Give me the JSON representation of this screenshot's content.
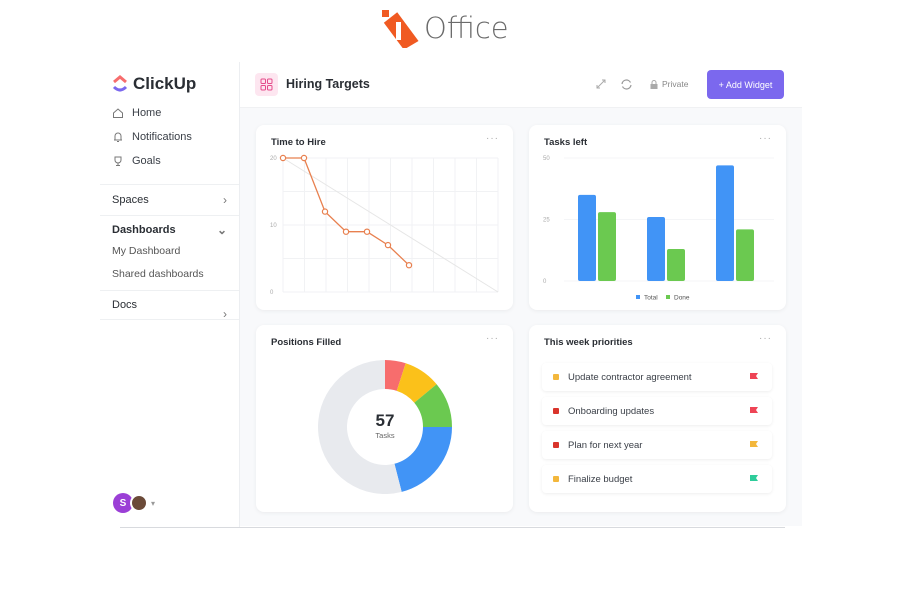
{
  "brand": {
    "name": "Office",
    "accent": "#f05a22"
  },
  "app": {
    "name": "ClickUp"
  },
  "sidebar": {
    "nav": [
      {
        "label": "Home",
        "icon": "home-icon"
      },
      {
        "label": "Notifications",
        "icon": "bell-icon"
      },
      {
        "label": "Goals",
        "icon": "trophy-icon"
      }
    ],
    "spaces": "Spaces",
    "dashboards": "Dashboards",
    "dashboard_items": [
      "My Dashboard",
      "Shared dashboards"
    ],
    "docs": "Docs",
    "avatar_initial": "S"
  },
  "header": {
    "title": "Hiring Targets",
    "privacy": "Private",
    "add_widget": "+ Add Widget",
    "accent": "#7b68ee"
  },
  "widgets": {
    "time_to_hire": {
      "title": "Time to Hire",
      "menu": "···"
    },
    "tasks_left": {
      "title": "Tasks left",
      "menu": "···"
    },
    "positions_filled": {
      "title": "Positions Filled",
      "menu": "···",
      "value": "57",
      "unit": "Tasks"
    },
    "priorities": {
      "title": "This week priorities",
      "menu": "···",
      "items": [
        {
          "label": "Update contractor agreement",
          "dot": "#f3b73c",
          "flag": "#ee4455"
        },
        {
          "label": "Onboarding updates",
          "dot": "#d9342b",
          "flag": "#ee4455"
        },
        {
          "label": "Plan for next year",
          "dot": "#d9342b",
          "flag": "#f3b73c"
        },
        {
          "label": "Finalize budget",
          "dot": "#f3b73c",
          "flag": "#2ecc9a"
        }
      ]
    }
  },
  "chart_data": [
    {
      "type": "line",
      "title": "Time to Hire",
      "ylim": [
        0,
        20
      ],
      "yticks": [
        "0",
        "10",
        "20"
      ],
      "color": "#e8804f",
      "values": [
        20,
        20,
        12,
        9,
        9,
        7,
        4
      ],
      "trend": [
        20,
        0
      ],
      "grid": true
    },
    {
      "type": "bar",
      "title": "Tasks left",
      "ylim": [
        0,
        50
      ],
      "yticks": [
        "0",
        "25",
        "50"
      ],
      "categories": [
        "",
        "",
        ""
      ],
      "series": [
        {
          "name": "Total",
          "color": "#4194f6",
          "values": [
            35,
            26,
            47
          ]
        },
        {
          "name": "Done",
          "color": "#6bc950",
          "values": [
            28,
            13,
            21
          ]
        }
      ],
      "legend": "bottom"
    },
    {
      "type": "pie",
      "title": "Positions Filled",
      "donut": true,
      "slices": [
        {
          "value": 5,
          "color": "#f76d6d"
        },
        {
          "value": 9,
          "color": "#fbc11a"
        },
        {
          "value": 11,
          "color": "#6bc950"
        },
        {
          "value": 21,
          "color": "#4194f6"
        },
        {
          "value": 54,
          "color": "#e8eaee"
        }
      ]
    }
  ]
}
